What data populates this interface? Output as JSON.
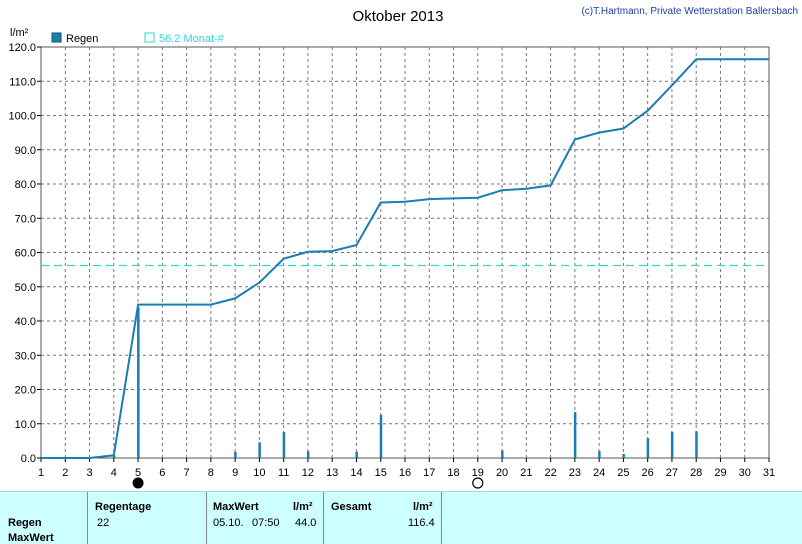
{
  "colors": {
    "rain": "#1a7fb0",
    "monthly_mean": "#2ad7d7",
    "grid": "#777777",
    "footer_bg": "#ccfffe"
  },
  "icons": {
    "new_moon": "new-moon-icon",
    "full_moon": "full-moon-icon"
  },
  "moon_days": {
    "new_moon": 5,
    "full_moon": 19
  },
  "chart_data": {
    "type": "bar+line",
    "title": "Oktober 2013",
    "credit": "(c)T.Hartmann, Private Wetterstation Ballersbach",
    "ylabel": "l/m²",
    "ylim": [
      0,
      120
    ],
    "y_ticks": [
      "0.0",
      "10.0",
      "20.0",
      "30.0",
      "40.0",
      "50.0",
      "60.0",
      "70.0",
      "80.0",
      "90.0",
      "100.0",
      "110.0",
      "120.0"
    ],
    "xlim": [
      1,
      31
    ],
    "x_ticks": [
      "1",
      "2",
      "3",
      "4",
      "5",
      "6",
      "7",
      "8",
      "9",
      "10",
      "11",
      "12",
      "13",
      "14",
      "15",
      "16",
      "17",
      "18",
      "19",
      "20",
      "21",
      "22",
      "23",
      "24",
      "25",
      "26",
      "27",
      "28",
      "29",
      "30",
      "31"
    ],
    "legend": {
      "bars": "Regen",
      "mean": "56.2 Monat-#"
    },
    "monthly_mean": 56.2,
    "daily_rain": [
      {
        "day": 4,
        "value": 0.8
      },
      {
        "day": 5,
        "value": 44.0
      },
      {
        "day": 9,
        "value": 1.8
      },
      {
        "day": 10,
        "value": 4.6
      },
      {
        "day": 11,
        "value": 7.6
      },
      {
        "day": 12,
        "value": 2.0
      },
      {
        "day": 14,
        "value": 1.8
      },
      {
        "day": 15,
        "value": 12.6
      },
      {
        "day": 20,
        "value": 2.2
      },
      {
        "day": 23,
        "value": 13.4
      },
      {
        "day": 24,
        "value": 2.0
      },
      {
        "day": 25,
        "value": 1.2
      },
      {
        "day": 26,
        "value": 5.8
      },
      {
        "day": 27,
        "value": 7.6
      },
      {
        "day": 28,
        "value": 7.8
      }
    ],
    "cumulative": [
      [
        1,
        0.0
      ],
      [
        2,
        0.0
      ],
      [
        3,
        0.0
      ],
      [
        4,
        0.8
      ],
      [
        5,
        44.8
      ],
      [
        6,
        44.8
      ],
      [
        7,
        44.8
      ],
      [
        8,
        44.8
      ],
      [
        9,
        46.6
      ],
      [
        10,
        51.2
      ],
      [
        11,
        58.2
      ],
      [
        12,
        60.2
      ],
      [
        13,
        60.4
      ],
      [
        14,
        62.2
      ],
      [
        15,
        74.6
      ],
      [
        16,
        74.8
      ],
      [
        17,
        75.6
      ],
      [
        18,
        75.8
      ],
      [
        19,
        76.0
      ],
      [
        20,
        78.2
      ],
      [
        21,
        78.6
      ],
      [
        22,
        79.6
      ],
      [
        23,
        93.0
      ],
      [
        24,
        95.0
      ],
      [
        25,
        96.2
      ],
      [
        26,
        101.4
      ],
      [
        27,
        108.8
      ],
      [
        28,
        116.4
      ],
      [
        29,
        116.4
      ],
      [
        30,
        116.4
      ],
      [
        31,
        116.4
      ]
    ]
  },
  "footer": {
    "row_labels": [
      "Regen",
      "MaxWert"
    ],
    "regentage_label": "Regentage",
    "regentage_value": "22",
    "maxwert_label": "MaxWert",
    "maxwert_unit": "l/m²",
    "maxwert_date": "05.10.",
    "maxwert_time": "07:50",
    "maxwert_value": "44.0",
    "gesamt_label": "Gesamt",
    "gesamt_unit": "l/m²",
    "gesamt_value": "116.4"
  }
}
